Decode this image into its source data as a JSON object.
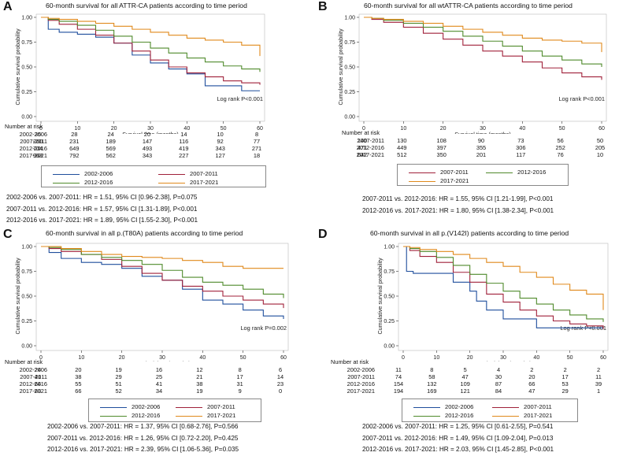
{
  "panels": [
    {
      "id": "A",
      "letter": "A",
      "title": "60-month survival for all ATTR-CA patients according to time period",
      "ylabel": "Cumulative survival probability",
      "xlabel": "Survival time (months)",
      "logrank": "Log rank P<0.001",
      "x_ticks": [
        "0",
        "10",
        "20",
        "30",
        "40",
        "50",
        "60"
      ],
      "y_ticks": [
        "0.00",
        "0.25",
        "0.50",
        "0.75",
        "1.00"
      ],
      "risk_title": "Number at risk",
      "risk_rows": [
        {
          "label": "2002-2006",
          "values": [
            "35",
            "28",
            "24",
            "20",
            "14",
            "10",
            "8"
          ]
        },
        {
          "label": "2007-2011",
          "values": [
            "260",
            "231",
            "189",
            "147",
            "116",
            "92",
            "77"
          ]
        },
        {
          "label": "2012-2016",
          "values": [
            "704",
            "649",
            "569",
            "493",
            "419",
            "343",
            "271"
          ]
        },
        {
          "label": "2017-2021",
          "values": [
            "968",
            "792",
            "562",
            "343",
            "227",
            "127",
            "18"
          ]
        }
      ],
      "legend": [
        "2002-2006",
        "2007-2011",
        "2012-2016",
        "2017-2021"
      ],
      "hr_lines": [
        "2002-2006 vs. 2007-2011: HR = 1.51, 95% CI [0.96-2.38], P=0.075",
        "2007-2011 vs. 2012-2016: HR = 1.57, 95% CI [1.31-1.89], P<0.001",
        "2012-2016 vs. 2017-2021: HR = 1.89, 95% CI [1.55-2.30], P<0.001"
      ]
    },
    {
      "id": "B",
      "letter": "B",
      "title": "60-month survival for all wtATTR-CA patients according to time period",
      "ylabel": "Cumulative survival probability",
      "xlabel": "Survival time (months)",
      "logrank": "Log rank P<0.001",
      "x_ticks": [
        "0",
        "10",
        "20",
        "30",
        "40",
        "50",
        "60"
      ],
      "y_ticks": [
        "0.00",
        "0.25",
        "0.50",
        "0.75",
        "1.00"
      ],
      "risk_title": "Number at risk",
      "risk_rows": [
        {
          "label": "2007-2011",
          "values": [
            "140",
            "130",
            "108",
            "90",
            "73",
            "56",
            "50"
          ]
        },
        {
          "label": "2012-2016",
          "values": [
            "471",
            "449",
            "397",
            "355",
            "306",
            "252",
            "205"
          ]
        },
        {
          "label": "2017-2021",
          "values": [
            "642",
            "512",
            "350",
            "201",
            "117",
            "76",
            "10"
          ]
        }
      ],
      "legend": [
        "2007-2011",
        "2012-2016",
        "2017-2021"
      ],
      "hr_lines": [
        "2007-2011 vs. 2012-2016: HR = 1.55, 95% CI [1.21-1.99], P<0.001",
        "2012-2016 vs. 2017-2021: HR = 1.80, 95% CI [1.38-2.34], P<0.001"
      ]
    },
    {
      "id": "C",
      "letter": "C",
      "title": "60-month survival in all p.(T80A) patients according to time period",
      "ylabel": "Cumulative survival probability",
      "xlabel": "Survival time (months)",
      "logrank": "Log rank P=0.002",
      "x_ticks": [
        "0",
        "10",
        "20",
        "30",
        "40",
        "50",
        "60"
      ],
      "y_ticks": [
        "0.00",
        "0.25",
        "0.50",
        "0.75",
        "1.00"
      ],
      "risk_title": "Number at risk",
      "risk_rows": [
        {
          "label": "2002-2006",
          "values": [
            "24",
            "20",
            "19",
            "16",
            "12",
            "8",
            "6"
          ]
        },
        {
          "label": "2007-2011",
          "values": [
            "41",
            "38",
            "29",
            "25",
            "21",
            "17",
            "14"
          ]
        },
        {
          "label": "2012-2016",
          "values": [
            "64",
            "55",
            "51",
            "41",
            "38",
            "31",
            "23"
          ]
        },
        {
          "label": "2017-2021",
          "values": [
            "83",
            "66",
            "52",
            "34",
            "19",
            "9",
            "0"
          ]
        }
      ],
      "legend": [
        "2002-2006",
        "2007-2011",
        "2012-2016",
        "2017-2021"
      ],
      "hr_lines": [
        "2002-2006 vs. 2007-2011: HR = 1.37, 95% CI [0.68-2.76], P=0.566",
        "2007-2011 vs. 2012-2016: HR = 1.26, 95% CI [0.72-2.20], P=0.425",
        "2012-2016 vs. 2017-2021: HR = 2.39, 95% CI [1.06-5.36], P=0.035"
      ]
    },
    {
      "id": "D",
      "letter": "D",
      "title": "60-month survival in all p.(V142I) patients according to time period",
      "ylabel": "Cumulative survival probability",
      "xlabel": "Survival time (months)",
      "logrank": "Log rank P<0.001",
      "x_ticks": [
        "0",
        "10",
        "20",
        "30",
        "40",
        "50",
        "60"
      ],
      "y_ticks": [
        "0.00",
        "0.25",
        "0.50",
        "0.75",
        "1.00"
      ],
      "risk_title": "Number at risk",
      "risk_rows": [
        {
          "label": "2002-2006",
          "values": [
            "11",
            "8",
            "5",
            "4",
            "2",
            "2",
            "2"
          ]
        },
        {
          "label": "2007-2011",
          "values": [
            "74",
            "58",
            "47",
            "30",
            "20",
            "17",
            "11"
          ]
        },
        {
          "label": "2012-2016",
          "values": [
            "154",
            "132",
            "109",
            "87",
            "66",
            "53",
            "39"
          ]
        },
        {
          "label": "2017-2021",
          "values": [
            "194",
            "169",
            "121",
            "84",
            "47",
            "29",
            "1"
          ]
        }
      ],
      "legend": [
        "2002-2006",
        "2007-2011",
        "2012-2016",
        "2017-2021"
      ],
      "hr_lines": [
        "2002-2006 vs. 2007-2011: HR = 1.25, 95% CI [0.61-2.55], P=0.541",
        "2007-2011 vs. 2012-2016: HR = 1.49, 95% CI [1.09-2.04], P=0.013",
        "2012-2016 vs. 2017-2021: HR = 2.03, 95% CI [1.45-2.85], P<0.001"
      ]
    }
  ],
  "colors": {
    "2002-2006": "#1f4e9c",
    "2007-2011": "#a0213a",
    "2012-2016": "#4f8a2b",
    "2017-2021": "#e0891b",
    "axis": "#333333",
    "grid": "#d9d9d9"
  },
  "chart_data": [
    {
      "type": "line",
      "title": "60-month survival for all ATTR-CA patients according to time period",
      "xlabel": "Survival time (months)",
      "ylabel": "Cumulative survival probability",
      "xlim": [
        0,
        60
      ],
      "ylim": [
        0,
        1
      ],
      "series": [
        {
          "name": "2002-2006",
          "x": [
            0,
            2,
            5,
            10,
            15,
            20,
            25,
            30,
            35,
            40,
            45,
            50,
            55,
            60
          ],
          "y": [
            1.0,
            0.88,
            0.85,
            0.83,
            0.8,
            0.74,
            0.62,
            0.54,
            0.48,
            0.43,
            0.31,
            0.31,
            0.26,
            0.26
          ]
        },
        {
          "name": "2007-2011",
          "x": [
            0,
            2,
            5,
            10,
            15,
            20,
            25,
            30,
            35,
            40,
            45,
            50,
            55,
            60
          ],
          "y": [
            1.0,
            0.97,
            0.93,
            0.88,
            0.82,
            0.74,
            0.66,
            0.57,
            0.5,
            0.44,
            0.4,
            0.36,
            0.34,
            0.32
          ]
        },
        {
          "name": "2012-2016",
          "x": [
            0,
            2,
            5,
            10,
            15,
            20,
            25,
            30,
            35,
            40,
            45,
            50,
            55,
            60
          ],
          "y": [
            1.0,
            0.98,
            0.96,
            0.92,
            0.87,
            0.81,
            0.75,
            0.69,
            0.64,
            0.59,
            0.55,
            0.51,
            0.48,
            0.45
          ]
        },
        {
          "name": "2017-2021",
          "x": [
            0,
            2,
            5,
            10,
            15,
            20,
            25,
            30,
            35,
            40,
            45,
            50,
            55,
            60
          ],
          "y": [
            1.0,
            0.99,
            0.98,
            0.96,
            0.94,
            0.91,
            0.88,
            0.85,
            0.82,
            0.79,
            0.77,
            0.75,
            0.72,
            0.61
          ]
        }
      ]
    },
    {
      "type": "line",
      "title": "60-month survival for all wtATTR-CA patients according to time period",
      "xlabel": "Survival time (months)",
      "ylabel": "Cumulative survival probability",
      "xlim": [
        0,
        60
      ],
      "ylim": [
        0,
        1
      ],
      "series": [
        {
          "name": "2007-2011",
          "x": [
            0,
            2,
            5,
            10,
            15,
            20,
            25,
            30,
            35,
            40,
            45,
            50,
            55,
            60
          ],
          "y": [
            1.0,
            0.98,
            0.95,
            0.9,
            0.84,
            0.78,
            0.72,
            0.66,
            0.61,
            0.55,
            0.49,
            0.44,
            0.4,
            0.37
          ]
        },
        {
          "name": "2012-2016",
          "x": [
            0,
            2,
            5,
            10,
            15,
            20,
            25,
            30,
            35,
            40,
            45,
            50,
            55,
            60
          ],
          "y": [
            1.0,
            0.99,
            0.97,
            0.94,
            0.9,
            0.86,
            0.81,
            0.76,
            0.71,
            0.66,
            0.61,
            0.57,
            0.53,
            0.5
          ]
        },
        {
          "name": "2017-2021",
          "x": [
            0,
            2,
            5,
            10,
            15,
            20,
            25,
            30,
            35,
            40,
            45,
            50,
            55,
            60
          ],
          "y": [
            1.0,
            0.99,
            0.98,
            0.96,
            0.94,
            0.91,
            0.88,
            0.85,
            0.82,
            0.79,
            0.77,
            0.76,
            0.74,
            0.65
          ]
        }
      ]
    },
    {
      "type": "line",
      "title": "60-month survival in all p.(T80A) patients according to time period",
      "xlabel": "Survival time (months)",
      "ylabel": "Cumulative survival probability",
      "xlim": [
        0,
        60
      ],
      "ylim": [
        0,
        1
      ],
      "series": [
        {
          "name": "2002-2006",
          "x": [
            0,
            2,
            5,
            10,
            15,
            20,
            25,
            30,
            35,
            40,
            45,
            50,
            55,
            60
          ],
          "y": [
            1.0,
            0.94,
            0.88,
            0.84,
            0.82,
            0.78,
            0.7,
            0.66,
            0.57,
            0.46,
            0.42,
            0.36,
            0.3,
            0.27
          ]
        },
        {
          "name": "2007-2011",
          "x": [
            0,
            2,
            5,
            10,
            15,
            20,
            25,
            30,
            35,
            40,
            45,
            50,
            55,
            60
          ],
          "y": [
            1.0,
            0.98,
            0.95,
            0.92,
            0.87,
            0.8,
            0.73,
            0.66,
            0.6,
            0.55,
            0.5,
            0.46,
            0.42,
            0.38
          ]
        },
        {
          "name": "2012-2016",
          "x": [
            0,
            2,
            5,
            10,
            15,
            20,
            25,
            30,
            35,
            40,
            45,
            50,
            55,
            60
          ],
          "y": [
            1.0,
            0.99,
            0.97,
            0.92,
            0.89,
            0.86,
            0.82,
            0.76,
            0.69,
            0.64,
            0.61,
            0.57,
            0.52,
            0.48
          ]
        },
        {
          "name": "2017-2021",
          "x": [
            0,
            2,
            5,
            10,
            15,
            20,
            25,
            30,
            35,
            40,
            45,
            50,
            55,
            60
          ],
          "y": [
            1.0,
            1.0,
            0.98,
            0.95,
            0.92,
            0.9,
            0.89,
            0.88,
            0.86,
            0.84,
            0.8,
            0.78,
            0.78,
            0.78
          ]
        }
      ]
    },
    {
      "type": "line",
      "title": "60-month survival in all p.(V142I) patients according to time period",
      "xlabel": "Survival time (months)",
      "ylabel": "Cumulative survival probability",
      "xlim": [
        0,
        60
      ],
      "ylim": [
        0,
        1
      ],
      "series": [
        {
          "name": "2002-2006",
          "x": [
            0,
            1,
            3,
            10,
            15,
            20,
            22,
            25,
            30,
            35,
            40,
            45,
            50,
            55,
            60
          ],
          "y": [
            1.0,
            0.75,
            0.73,
            0.73,
            0.64,
            0.55,
            0.45,
            0.36,
            0.27,
            0.27,
            0.18,
            0.18,
            0.18,
            0.18,
            0.18
          ]
        },
        {
          "name": "2007-2011",
          "x": [
            0,
            2,
            5,
            10,
            15,
            20,
            25,
            30,
            35,
            40,
            45,
            50,
            55,
            60
          ],
          "y": [
            1.0,
            0.96,
            0.9,
            0.84,
            0.74,
            0.64,
            0.52,
            0.44,
            0.36,
            0.3,
            0.25,
            0.22,
            0.2,
            0.17
          ]
        },
        {
          "name": "2012-2016",
          "x": [
            0,
            2,
            5,
            10,
            15,
            20,
            25,
            30,
            35,
            40,
            45,
            50,
            55,
            60
          ],
          "y": [
            1.0,
            0.98,
            0.95,
            0.89,
            0.81,
            0.72,
            0.63,
            0.55,
            0.48,
            0.42,
            0.36,
            0.31,
            0.27,
            0.24
          ]
        },
        {
          "name": "2017-2021",
          "x": [
            0,
            2,
            5,
            10,
            15,
            20,
            25,
            30,
            35,
            40,
            45,
            50,
            55,
            60
          ],
          "y": [
            1.0,
            0.99,
            0.97,
            0.95,
            0.92,
            0.88,
            0.84,
            0.8,
            0.74,
            0.69,
            0.62,
            0.56,
            0.52,
            0.36
          ]
        }
      ]
    }
  ]
}
